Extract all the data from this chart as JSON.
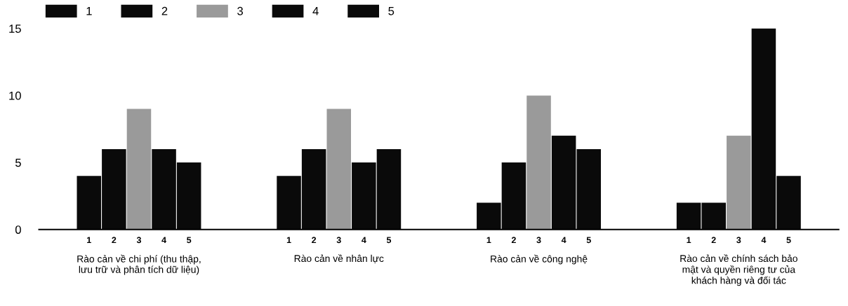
{
  "chart_data": {
    "type": "bar",
    "categories": [
      "Rào cản về chi phí (thu thập,\nlưu trữ và phân tích dữ liệu)",
      "Rào cản về nhân lực",
      "Rào cản về công nghệ",
      "Rào cản về chính sách bảo\nmật và quyền riêng tư của\nkhách hàng và đối tác"
    ],
    "series": [
      {
        "name": "1",
        "color": "#0a0a0a",
        "values": [
          4,
          4,
          2,
          2
        ]
      },
      {
        "name": "2",
        "color": "#0a0a0a",
        "values": [
          6,
          6,
          5,
          2
        ]
      },
      {
        "name": "3",
        "color": "#9a9a9a",
        "values": [
          9,
          9,
          10,
          7
        ]
      },
      {
        "name": "4",
        "color": "#0a0a0a",
        "values": [
          6,
          5,
          7,
          15
        ]
      },
      {
        "name": "5",
        "color": "#0a0a0a",
        "values": [
          5,
          6,
          6,
          4
        ]
      }
    ],
    "ylim": [
      0,
      15.3
    ],
    "yticks": [
      0,
      5,
      10,
      15
    ],
    "grid": false,
    "legend": "top left"
  }
}
